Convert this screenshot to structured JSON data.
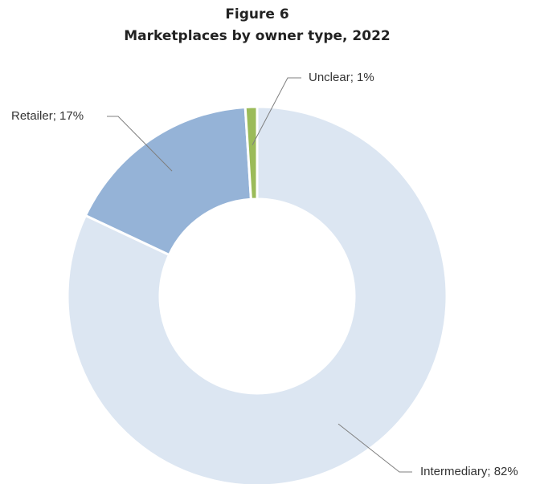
{
  "chart_data": {
    "type": "pie",
    "title": "Figure 6",
    "subtitle": "Marketplaces by owner type, 2022",
    "categories": [
      "Intermediary",
      "Retailer",
      "Unclear"
    ],
    "values": [
      82,
      17,
      1
    ],
    "value_labels": [
      "82%",
      "17%",
      "1%"
    ],
    "label_separator": "; ",
    "colors": [
      "#dce6f2",
      "#95b3d7",
      "#9bbb59"
    ]
  }
}
